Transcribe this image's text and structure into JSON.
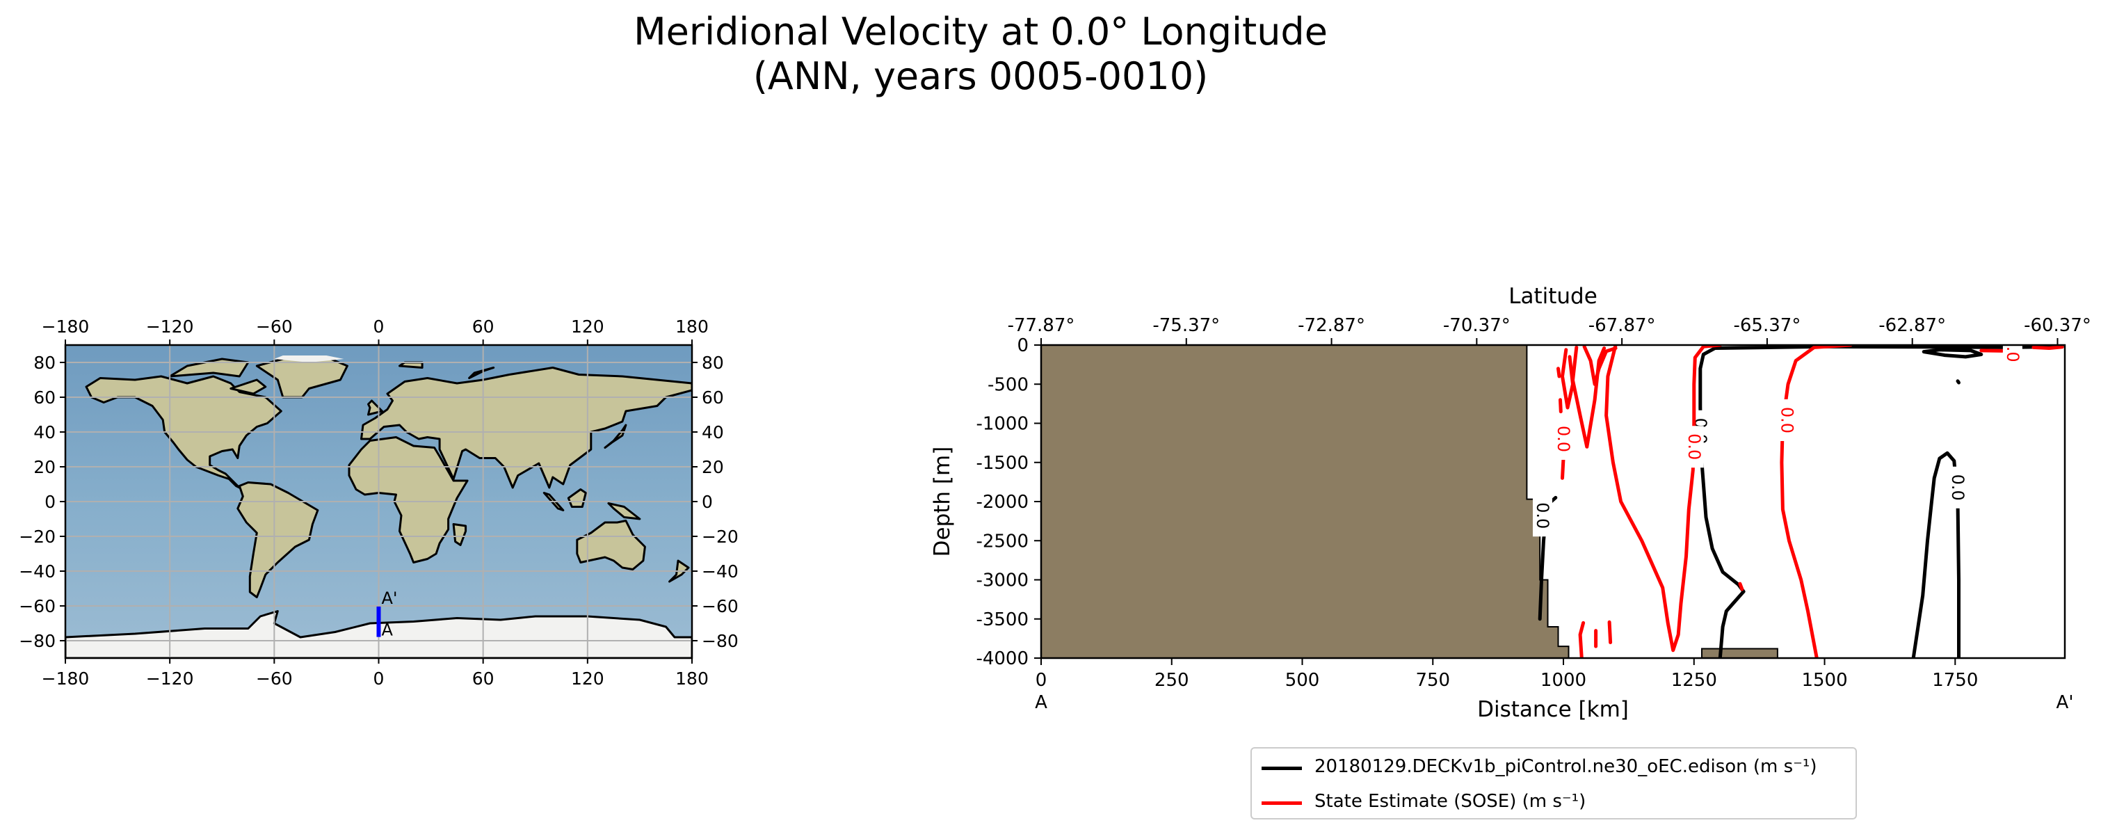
{
  "title": {
    "line1": "Meridional Velocity at 0.0° Longitude",
    "line2": "(ANN, years 0005-0010)"
  },
  "colors": {
    "model": "#000000",
    "observation": "#ff0000",
    "land": "#8c7d62",
    "section_marker": "#0000ff",
    "ocean": "#7aa4c4"
  },
  "chart_data": [
    {
      "type": "map",
      "projection": "plate carree",
      "xticks": [
        "−180",
        "−120",
        "−60",
        "0",
        "60",
        "120",
        "180"
      ],
      "xtick_values": [
        -180,
        -120,
        -60,
        0,
        60,
        120,
        180
      ],
      "yticks": [
        "−80",
        "−60",
        "−40",
        "−20",
        "0",
        "20",
        "40",
        "60",
        "80"
      ],
      "ytick_values": [
        -80,
        -60,
        -40,
        -20,
        0,
        20,
        40,
        60,
        80
      ],
      "xlim": [
        -180,
        180
      ],
      "ylim": [
        -90,
        90
      ],
      "grid": true,
      "section": {
        "lon": 0.0,
        "lat_start": -77.87,
        "lat_end": -60.37,
        "start_label": "A",
        "end_label": "A'"
      }
    },
    {
      "type": "contour",
      "xlabel": "Distance [km]",
      "ylabel": "Depth [m]",
      "top_label": "Latitude",
      "xlim": [
        0,
        1960
      ],
      "ylim": [
        -4000,
        0
      ],
      "xticks": [
        0,
        250,
        500,
        750,
        1000,
        1250,
        1500,
        1750
      ],
      "yticks": [
        0,
        -500,
        -1000,
        -1500,
        -2000,
        -2500,
        -3000,
        -3500,
        -4000
      ],
      "top_ticks": [
        "-77.87°",
        "-75.37°",
        "-72.87°",
        "-70.37°",
        "-67.87°",
        "-65.37°",
        "-62.87°",
        "-60.37°"
      ],
      "top_tick_distances": [
        0,
        278,
        556,
        834,
        1112,
        1390,
        1668,
        1946
      ],
      "start_label": "A",
      "end_label": "A'",
      "contour_level": "0.0",
      "land_mask": [
        [
          0,
          0
        ],
        [
          930,
          0
        ],
        [
          930,
          -1970
        ],
        [
          955,
          -1970
        ],
        [
          955,
          -3000
        ],
        [
          970,
          -3000
        ],
        [
          970,
          -3600
        ],
        [
          990,
          -3600
        ],
        [
          990,
          -3850
        ],
        [
          1010,
          -3850
        ],
        [
          1010,
          -4000
        ],
        [
          0,
          -4000
        ]
      ],
      "seamount": [
        [
          1265,
          -4000
        ],
        [
          1265,
          -3880
        ],
        [
          1410,
          -3880
        ],
        [
          1410,
          -4000
        ]
      ],
      "series": [
        {
          "name": "20180129.DECKv1b_piControl.ne30_oEC.edison (m s⁻¹)",
          "contours": [
            [
              [
                955,
                -3500
              ],
              [
                958,
                -3000
              ],
              [
                962,
                -2500
              ],
              [
                968,
                -2050
              ],
              [
                985,
                -1950
              ]
            ],
            [
              [
                1300,
                -4000
              ],
              [
                1305,
                -3600
              ],
              [
                1312,
                -3400
              ],
              [
                1325,
                -3300
              ],
              [
                1345,
                -3150
              ],
              [
                1335,
                -3060
              ],
              [
                1305,
                -2900
              ],
              [
                1285,
                -2600
              ],
              [
                1273,
                -2200
              ],
              [
                1265,
                -1500
              ],
              [
                1262,
                -800
              ],
              [
                1262,
                -300
              ],
              [
                1268,
                -120
              ],
              [
                1290,
                -40
              ],
              [
                1500,
                -20
              ],
              [
                1700,
                -25
              ],
              [
                1850,
                -30
              ],
              [
                1955,
                -20
              ]
            ],
            [
              [
                1670,
                -4000
              ],
              [
                1688,
                -3200
              ],
              [
                1697,
                -2500
              ],
              [
                1705,
                -2000
              ],
              [
                1710,
                -1700
              ],
              [
                1720,
                -1450
              ],
              [
                1735,
                -1380
              ],
              [
                1748,
                -1480
              ],
              [
                1755,
                -2000
              ],
              [
                1757,
                -3000
              ],
              [
                1757,
                -4000
              ]
            ],
            [
              [
                1690,
                -85
              ],
              [
                1730,
                -130
              ],
              [
                1770,
                -150
              ],
              [
                1800,
                -120
              ],
              [
                1780,
                -70
              ],
              [
                1720,
                -60
              ],
              [
                1690,
                -85
              ]
            ],
            [
              [
                1755,
                -460
              ],
              [
                1757,
                -480
              ]
            ]
          ],
          "labels": [
            {
              "x": 1262,
              "y": -1100,
              "text": "0.0"
            },
            {
              "x": 960,
              "y": -2180,
              "text": "0.0"
            },
            {
              "x": 1755,
              "y": -1820,
              "text": "0.0"
            }
          ]
        },
        {
          "name": "State Estimate (SOSE) (m s⁻¹)",
          "contours": [
            [
              [
                1035,
                -4000
              ],
              [
                1032,
                -3700
              ],
              [
                1038,
                -3550
              ]
            ],
            [
              [
                1062,
                -3650
              ],
              [
                1062,
                -3850
              ]
            ],
            [
              [
                1090,
                -3800
              ],
              [
                1088,
                -3540
              ]
            ],
            [
              [
                1000,
                -1450
              ],
              [
                998,
                -1700
              ]
            ],
            [
              [
                995,
                -1200
              ],
              [
                996,
                -1300
              ]
            ],
            [
              [
                994,
                -700
              ],
              [
                995,
                -850
              ]
            ],
            [
              [
                990,
                -300
              ],
              [
                992,
                -400
              ]
            ],
            [
              [
                1005,
                -60
              ],
              [
                998,
                -400
              ],
              [
                1008,
                -800
              ],
              [
                1018,
                -500
              ],
              [
                1012,
                -150
              ]
            ],
            [
              [
                1025,
                -30
              ],
              [
                1018,
                -450
              ],
              [
                1032,
                -900
              ],
              [
                1045,
                -1300
              ],
              [
                1060,
                -700
              ],
              [
                1068,
                -200
              ],
              [
                1078,
                -40
              ]
            ],
            [
              [
                1040,
                -20
              ],
              [
                1052,
                -200
              ],
              [
                1060,
                -500
              ],
              [
                1068,
                -300
              ],
              [
                1082,
                -80
              ],
              [
                1100,
                -40
              ]
            ],
            [
              [
                1100,
                0
              ],
              [
                1085,
                -400
              ],
              [
                1082,
                -900
              ],
              [
                1095,
                -1500
              ],
              [
                1110,
                -2000
              ],
              [
                1150,
                -2500
              ],
              [
                1190,
                -3100
              ],
              [
                1200,
                -3550
              ],
              [
                1210,
                -3900
              ],
              [
                1220,
                -3700
              ],
              [
                1225,
                -3300
              ],
              [
                1235,
                -2700
              ],
              [
                1240,
                -2100
              ],
              [
                1248,
                -1600
              ],
              [
                1250,
                -1000
              ],
              [
                1250,
                -500
              ],
              [
                1252,
                -160
              ],
              [
                1268,
                -20
              ],
              [
                1300,
                0
              ]
            ],
            [
              [
                1338,
                -3050
              ],
              [
                1342,
                -3120
              ]
            ],
            [
              [
                1485,
                -4000
              ],
              [
                1468,
                -3400
              ],
              [
                1455,
                -3000
              ],
              [
                1432,
                -2500
              ],
              [
                1420,
                -2100
              ],
              [
                1418,
                -1500
              ],
              [
                1420,
                -1000
              ],
              [
                1430,
                -500
              ],
              [
                1445,
                -200
              ],
              [
                1480,
                -30
              ],
              [
                1550,
                0
              ]
            ],
            [
              [
                1900,
                -30
              ],
              [
                1930,
                -40
              ],
              [
                1955,
                -25
              ]
            ],
            [
              [
                1800,
                -70
              ],
              [
                1840,
                -75
              ]
            ]
          ],
          "labels": [
            {
              "x": 1000,
              "y": -1200,
              "text": "0.0"
            },
            {
              "x": 1250,
              "y": -1300,
              "text": "0.0"
            },
            {
              "x": 1428,
              "y": -960,
              "text": "0.0"
            },
            {
              "x": 1860,
              "y": -50,
              "text": "0.0"
            }
          ]
        }
      ]
    }
  ]
}
